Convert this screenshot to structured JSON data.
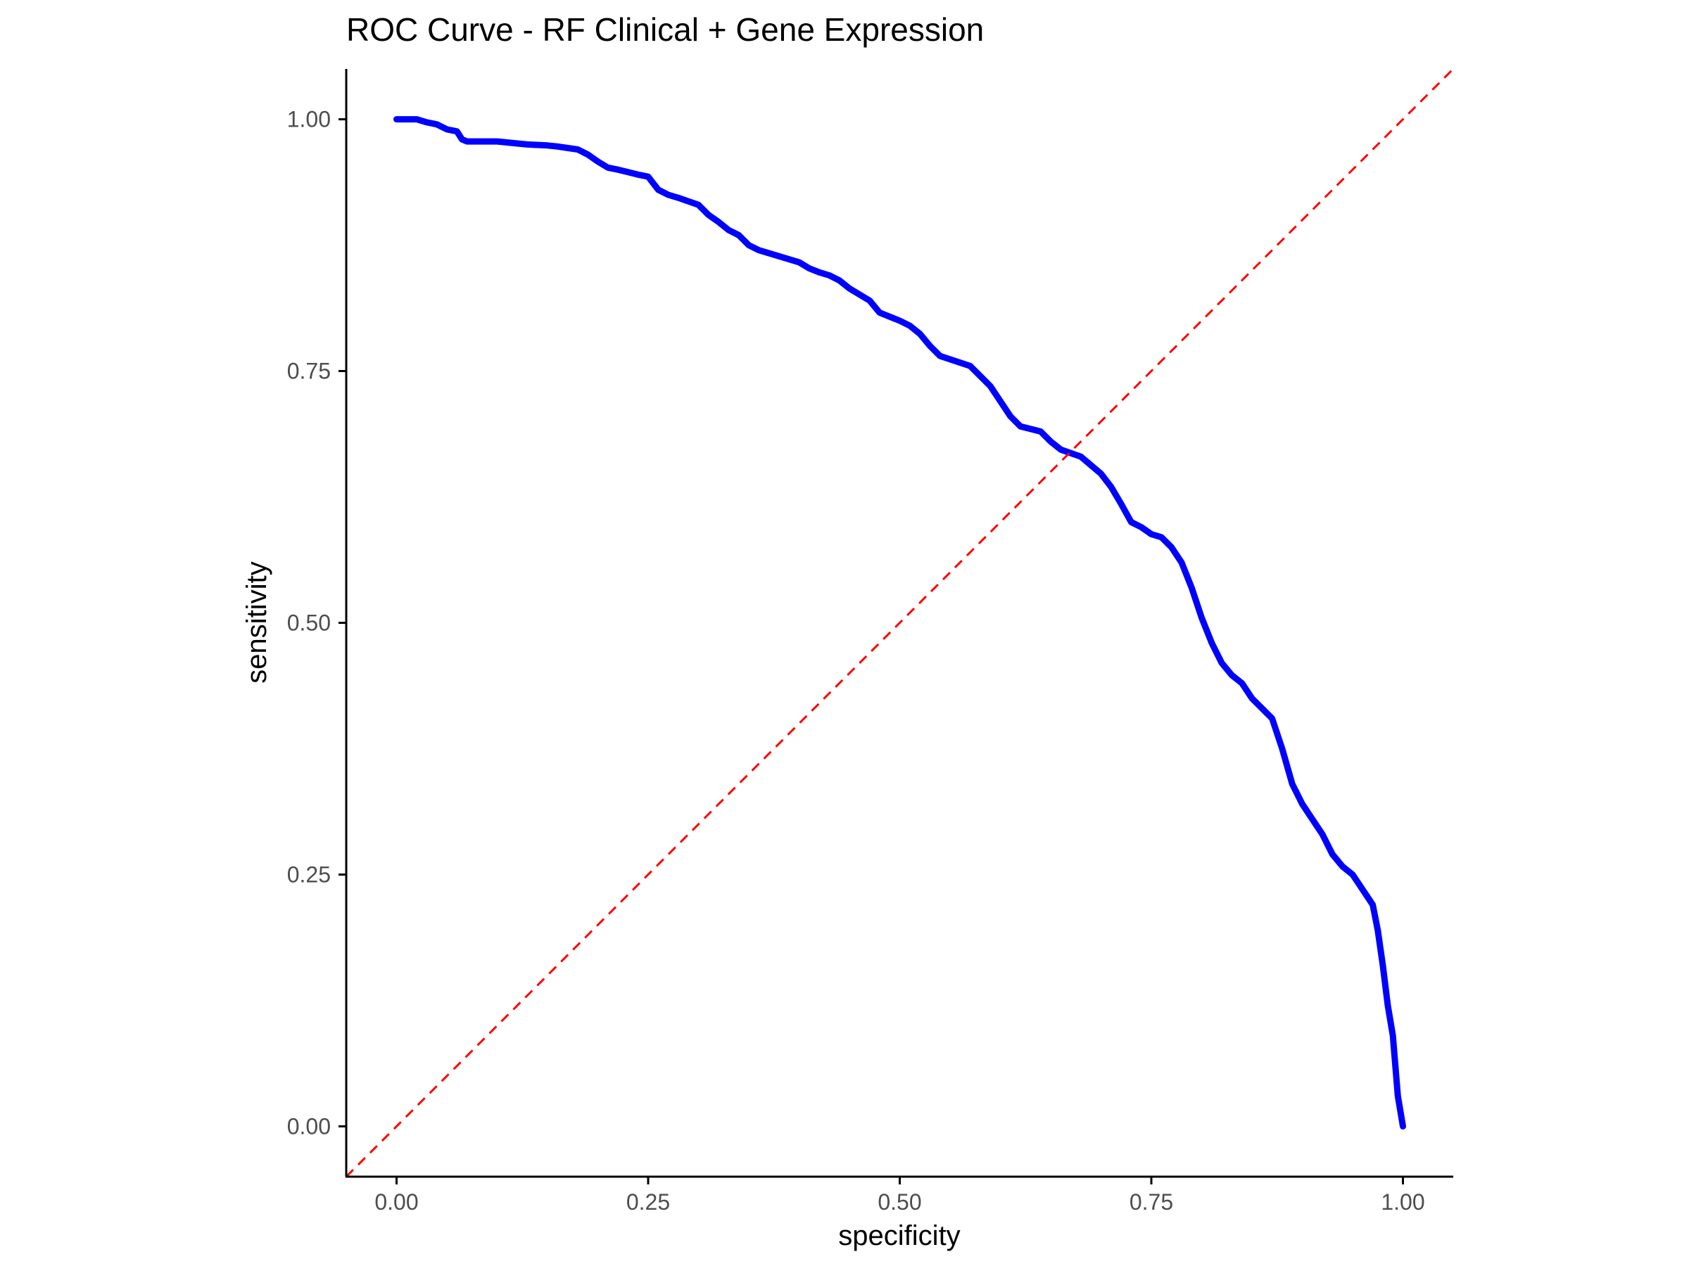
{
  "chart_data": {
    "type": "line",
    "title": "ROC Curve - RF Clinical + Gene Expression",
    "xlabel": "specificity",
    "ylabel": "sensitivity",
    "xlim": [
      -0.05,
      1.05
    ],
    "ylim": [
      -0.05,
      1.05
    ],
    "x_reversed": false,
    "x_ticks": [
      0,
      0.25,
      0.5,
      0.75,
      1
    ],
    "x_tick_labels": [
      "0.00",
      "0.25",
      "0.50",
      "0.75",
      "1.00"
    ],
    "y_ticks": [
      0,
      0.25,
      0.5,
      0.75,
      1
    ],
    "y_tick_labels": [
      "0.00",
      "0.25",
      "0.50",
      "0.75",
      "1.00"
    ],
    "grid": false,
    "legend": "none",
    "series": [
      {
        "color": "#0000ff",
        "line_style": "solid",
        "x": [
          0.0,
          0.02,
          0.03,
          0.04,
          0.05,
          0.06,
          0.065,
          0.07,
          0.08,
          0.1,
          0.12,
          0.13,
          0.15,
          0.16,
          0.18,
          0.19,
          0.2,
          0.21,
          0.22,
          0.24,
          0.25,
          0.26,
          0.27,
          0.28,
          0.3,
          0.31,
          0.32,
          0.33,
          0.34,
          0.35,
          0.36,
          0.4,
          0.41,
          0.42,
          0.43,
          0.44,
          0.45,
          0.47,
          0.48,
          0.5,
          0.51,
          0.52,
          0.53,
          0.54,
          0.57,
          0.58,
          0.59,
          0.6,
          0.61,
          0.62,
          0.64,
          0.65,
          0.66,
          0.68,
          0.7,
          0.71,
          0.72,
          0.73,
          0.74,
          0.75,
          0.76,
          0.77,
          0.78,
          0.79,
          0.8,
          0.81,
          0.82,
          0.83,
          0.84,
          0.85,
          0.86,
          0.87,
          0.88,
          0.89,
          0.9,
          0.91,
          0.92,
          0.93,
          0.94,
          0.95,
          0.96,
          0.97,
          0.975,
          0.98,
          0.985,
          0.99,
          0.995,
          1.0
        ],
        "y": [
          1.0,
          1.0,
          0.997,
          0.995,
          0.99,
          0.988,
          0.98,
          0.978,
          0.978,
          0.978,
          0.976,
          0.975,
          0.974,
          0.973,
          0.97,
          0.965,
          0.958,
          0.952,
          0.95,
          0.945,
          0.943,
          0.93,
          0.925,
          0.922,
          0.915,
          0.905,
          0.898,
          0.89,
          0.885,
          0.875,
          0.87,
          0.858,
          0.852,
          0.848,
          0.845,
          0.84,
          0.832,
          0.82,
          0.808,
          0.8,
          0.795,
          0.787,
          0.775,
          0.765,
          0.755,
          0.745,
          0.735,
          0.72,
          0.705,
          0.695,
          0.69,
          0.68,
          0.672,
          0.665,
          0.648,
          0.635,
          0.618,
          0.6,
          0.595,
          0.588,
          0.585,
          0.575,
          0.56,
          0.535,
          0.505,
          0.48,
          0.46,
          0.448,
          0.44,
          0.425,
          0.415,
          0.405,
          0.375,
          0.34,
          0.32,
          0.305,
          0.29,
          0.27,
          0.258,
          0.25,
          0.235,
          0.22,
          0.195,
          0.16,
          0.12,
          0.09,
          0.03,
          0.0
        ]
      },
      {
        "color": "#ff0000",
        "line_style": "dashed",
        "x": [
          -0.05,
          1.05
        ],
        "y": [
          -0.05,
          1.05
        ]
      }
    ]
  }
}
